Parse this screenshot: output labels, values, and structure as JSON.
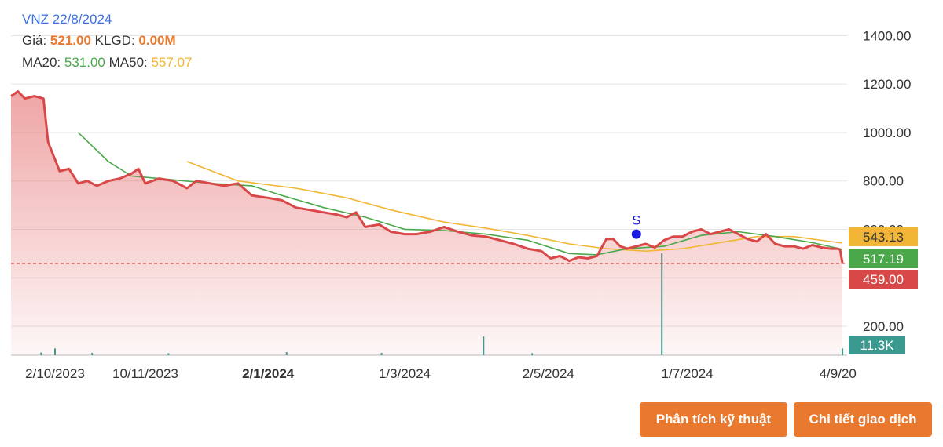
{
  "header": {
    "title": "VNZ 22/8/2024",
    "price_label": "Giá:",
    "price_value": "521.00",
    "volume_label": "KLGD:",
    "volume_value": "0.00M",
    "ma20_label": "MA20:",
    "ma20_value": "531.00",
    "ma50_label": "MA50:",
    "ma50_value": "557.07"
  },
  "buttons": {
    "technical": "Phân tích kỹ thuật",
    "transactions": "Chi tiết giao dịch"
  },
  "colors": {
    "price": "#d94848",
    "ma20": "#4aa84a",
    "ma50": "#f2b636",
    "volume": "#3a9a8f",
    "signal": "#1a1adf",
    "button": "#e8792f"
  },
  "chart_data": {
    "type": "line",
    "y_axis": {
      "min": 80,
      "max": 1450,
      "ticks": [
        200,
        400,
        600,
        800,
        1000,
        1200,
        1400
      ],
      "tick_labels": [
        "200.00",
        "",
        "600.00",
        "800.00",
        "1000.00",
        "1200.00",
        "1400.00"
      ],
      "position": "right"
    },
    "x_axis": {
      "ticks": [
        {
          "date": "2023-10-02",
          "label": "2/10/2023",
          "bold": false
        },
        {
          "date": "2023-11-10",
          "label": "10/11/2023",
          "bold": false
        },
        {
          "date": "2024-01-02",
          "label": "2/1/2024",
          "bold": true
        },
        {
          "date": "2024-03-01",
          "label": "1/3/2024",
          "bold": false
        },
        {
          "date": "2024-05-02",
          "label": "2/5/2024",
          "bold": false
        },
        {
          "date": "2024-07-01",
          "label": "1/7/2024",
          "bold": false
        },
        {
          "date": "2024-09-04",
          "label": "4/9/20",
          "bold": false
        }
      ]
    },
    "price_series": {
      "name": "Giá",
      "points": [
        [
          "2023-09-13",
          1150
        ],
        [
          "2023-09-16",
          1170
        ],
        [
          "2023-09-19",
          1140
        ],
        [
          "2023-09-23",
          1150
        ],
        [
          "2023-09-27",
          1140
        ],
        [
          "2023-09-29",
          960
        ],
        [
          "2023-10-04",
          840
        ],
        [
          "2023-10-08",
          850
        ],
        [
          "2023-10-12",
          790
        ],
        [
          "2023-10-16",
          800
        ],
        [
          "2023-10-20",
          780
        ],
        [
          "2023-10-25",
          800
        ],
        [
          "2023-10-30",
          810
        ],
        [
          "2023-11-04",
          830
        ],
        [
          "2023-11-07",
          850
        ],
        [
          "2023-11-10",
          790
        ],
        [
          "2023-11-16",
          810
        ],
        [
          "2023-11-22",
          800
        ],
        [
          "2023-11-28",
          770
        ],
        [
          "2023-12-02",
          800
        ],
        [
          "2023-12-08",
          790
        ],
        [
          "2023-12-14",
          780
        ],
        [
          "2023-12-20",
          790
        ],
        [
          "2023-12-26",
          740
        ],
        [
          "2024-01-02",
          730
        ],
        [
          "2024-01-08",
          720
        ],
        [
          "2024-01-14",
          690
        ],
        [
          "2024-01-20",
          680
        ],
        [
          "2024-01-26",
          670
        ],
        [
          "2024-02-01",
          660
        ],
        [
          "2024-02-05",
          650
        ],
        [
          "2024-02-09",
          670
        ],
        [
          "2024-02-13",
          610
        ],
        [
          "2024-02-19",
          620
        ],
        [
          "2024-02-24",
          590
        ],
        [
          "2024-03-01",
          580
        ],
        [
          "2024-03-06",
          580
        ],
        [
          "2024-03-12",
          590
        ],
        [
          "2024-03-18",
          610
        ],
        [
          "2024-03-24",
          590
        ],
        [
          "2024-03-30",
          575
        ],
        [
          "2024-04-05",
          570
        ],
        [
          "2024-04-11",
          555
        ],
        [
          "2024-04-17",
          540
        ],
        [
          "2024-04-23",
          520
        ],
        [
          "2024-04-29",
          510
        ],
        [
          "2024-05-03",
          480
        ],
        [
          "2024-05-07",
          490
        ],
        [
          "2024-05-11",
          470
        ],
        [
          "2024-05-15",
          485
        ],
        [
          "2024-05-19",
          480
        ],
        [
          "2024-05-23",
          490
        ],
        [
          "2024-05-27",
          560
        ],
        [
          "2024-05-30",
          560
        ],
        [
          "2024-06-02",
          530
        ],
        [
          "2024-06-05",
          520
        ],
        [
          "2024-06-09",
          530
        ],
        [
          "2024-06-13",
          540
        ],
        [
          "2024-06-17",
          525
        ],
        [
          "2024-06-21",
          555
        ],
        [
          "2024-06-25",
          570
        ],
        [
          "2024-06-29",
          570
        ],
        [
          "2024-07-03",
          590
        ],
        [
          "2024-07-07",
          600
        ],
        [
          "2024-07-11",
          580
        ],
        [
          "2024-07-15",
          590
        ],
        [
          "2024-07-19",
          600
        ],
        [
          "2024-07-23",
          580
        ],
        [
          "2024-07-27",
          560
        ],
        [
          "2024-07-31",
          550
        ],
        [
          "2024-08-04",
          580
        ],
        [
          "2024-08-08",
          540
        ],
        [
          "2024-08-12",
          530
        ],
        [
          "2024-08-16",
          530
        ],
        [
          "2024-08-20",
          520
        ],
        [
          "2024-08-24",
          535
        ],
        [
          "2024-08-28",
          525
        ],
        [
          "2024-09-01",
          520
        ],
        [
          "2024-09-04",
          520
        ],
        [
          "2024-09-05",
          515
        ],
        [
          "2024-09-06",
          459
        ]
      ]
    },
    "ma20_series": {
      "name": "MA20",
      "points": [
        [
          "2023-10-12",
          1000
        ],
        [
          "2023-10-25",
          880
        ],
        [
          "2023-11-04",
          820
        ],
        [
          "2023-11-16",
          810
        ],
        [
          "2023-12-08",
          790
        ],
        [
          "2023-12-26",
          780
        ],
        [
          "2024-01-08",
          740
        ],
        [
          "2024-01-26",
          690
        ],
        [
          "2024-02-13",
          650
        ],
        [
          "2024-03-01",
          600
        ],
        [
          "2024-03-18",
          595
        ],
        [
          "2024-04-05",
          580
        ],
        [
          "2024-04-23",
          555
        ],
        [
          "2024-05-11",
          500
        ],
        [
          "2024-05-23",
          495
        ],
        [
          "2024-06-05",
          520
        ],
        [
          "2024-06-21",
          530
        ],
        [
          "2024-07-07",
          575
        ],
        [
          "2024-07-23",
          590
        ],
        [
          "2024-08-08",
          570
        ],
        [
          "2024-08-24",
          545
        ],
        [
          "2024-09-06",
          517.19
        ]
      ]
    },
    "ma50_series": {
      "name": "MA50",
      "points": [
        [
          "2023-11-28",
          880
        ],
        [
          "2023-12-20",
          800
        ],
        [
          "2024-01-14",
          770
        ],
        [
          "2024-02-05",
          730
        ],
        [
          "2024-02-24",
          680
        ],
        [
          "2024-03-18",
          630
        ],
        [
          "2024-04-05",
          605
        ],
        [
          "2024-04-23",
          575
        ],
        [
          "2024-05-11",
          540
        ],
        [
          "2024-05-27",
          520
        ],
        [
          "2024-06-13",
          510
        ],
        [
          "2024-06-29",
          520
        ],
        [
          "2024-07-15",
          545
        ],
        [
          "2024-07-31",
          570
        ],
        [
          "2024-08-16",
          570
        ],
        [
          "2024-09-06",
          543.13
        ]
      ]
    },
    "reference_price": 459,
    "signal": {
      "date": "2024-06-09",
      "value": 580,
      "label": "S"
    },
    "volume": {
      "max": 30000,
      "bars": [
        [
          "2023-09-26",
          800
        ],
        [
          "2023-10-02",
          2000
        ],
        [
          "2023-10-18",
          700
        ],
        [
          "2023-11-20",
          600
        ],
        [
          "2024-01-10",
          900
        ],
        [
          "2024-02-20",
          700
        ],
        [
          "2024-04-04",
          5500
        ],
        [
          "2024-04-25",
          600
        ],
        [
          "2024-06-20",
          30000
        ],
        [
          "2024-09-06",
          2000
        ]
      ]
    },
    "value_labels": [
      {
        "label": "543.13",
        "value": 543.13,
        "color": "#f2b636",
        "text_color": "#333333"
      },
      {
        "label": "517.19",
        "value": 517.19,
        "color": "#4aa84a",
        "text_color": "#ffffff"
      },
      {
        "label": "459.00",
        "value": 459,
        "color": "#d94848",
        "text_color": "#ffffff"
      }
    ],
    "volume_label": {
      "label": "11.3K",
      "color": "#3a9a8f"
    }
  }
}
